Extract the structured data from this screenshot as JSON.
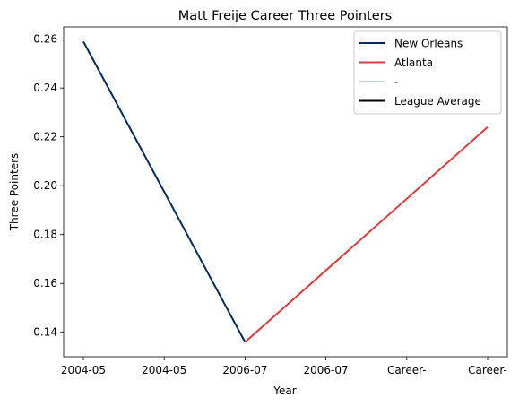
{
  "chart_data": {
    "type": "line",
    "title": "Matt Freije Career Three Pointers",
    "xlabel": "Year",
    "ylabel": "Three Pointers",
    "x_categories": [
      "2004-05",
      "2004-05",
      "2006-07",
      "2006-07",
      "Career-",
      "Career-"
    ],
    "ylim": [
      0.13,
      0.265
    ],
    "yticks": [
      0.14,
      0.16,
      0.18,
      0.2,
      0.22,
      0.24,
      0.26
    ],
    "ytick_labels": [
      "0.14",
      "0.16",
      "0.18",
      "0.20",
      "0.22",
      "0.24",
      "0.26"
    ],
    "grid": false,
    "legend_position": "top-right",
    "series": [
      {
        "name": "New Orleans",
        "color": "#002b5c",
        "points": [
          [
            0,
            0.259
          ],
          [
            2,
            0.136
          ]
        ]
      },
      {
        "name": "Atlanta",
        "color": "#e03a3e",
        "points": [
          [
            2,
            0.136
          ],
          [
            5,
            0.224
          ]
        ]
      },
      {
        "name": "-",
        "color": "#c4ced4",
        "points": []
      },
      {
        "name": "League Average",
        "color": "#000000",
        "points": []
      }
    ]
  }
}
